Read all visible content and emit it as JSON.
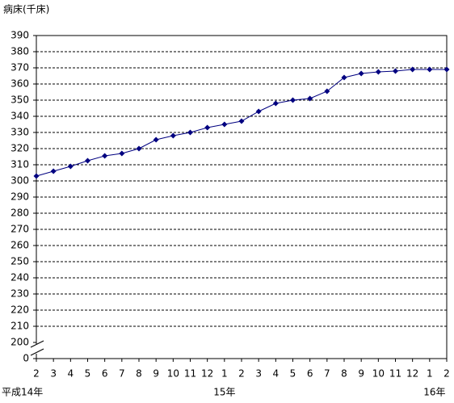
{
  "chart_data": {
    "type": "line",
    "title": "病床(千床)",
    "categories": [
      "2",
      "3",
      "4",
      "5",
      "6",
      "7",
      "8",
      "9",
      "10",
      "11",
      "12",
      "1",
      "2",
      "3",
      "4",
      "5",
      "6",
      "7",
      "8",
      "9",
      "10",
      "11",
      "12",
      "1",
      "2"
    ],
    "period_labels": [
      "平成14年",
      null,
      null,
      null,
      null,
      null,
      null,
      null,
      null,
      null,
      null,
      "15年",
      null,
      null,
      null,
      null,
      null,
      null,
      null,
      null,
      null,
      null,
      null,
      "16年",
      null
    ],
    "series": [
      {
        "color": "#000080",
        "values": [
          303,
          306,
          309,
          312.5,
          315.5,
          317,
          320,
          325.5,
          328,
          330,
          333,
          335,
          337,
          343,
          348,
          350,
          351,
          355.5,
          364,
          366.5,
          367.5,
          368,
          369,
          369,
          369
        ]
      }
    ],
    "ylim": [
      200,
      390
    ],
    "yticks": [
      200,
      210,
      220,
      230,
      240,
      250,
      260,
      270,
      280,
      290,
      300,
      310,
      320,
      330,
      340,
      350,
      360,
      370,
      380,
      390
    ],
    "axis_origin_tick": 0,
    "grid": true
  }
}
